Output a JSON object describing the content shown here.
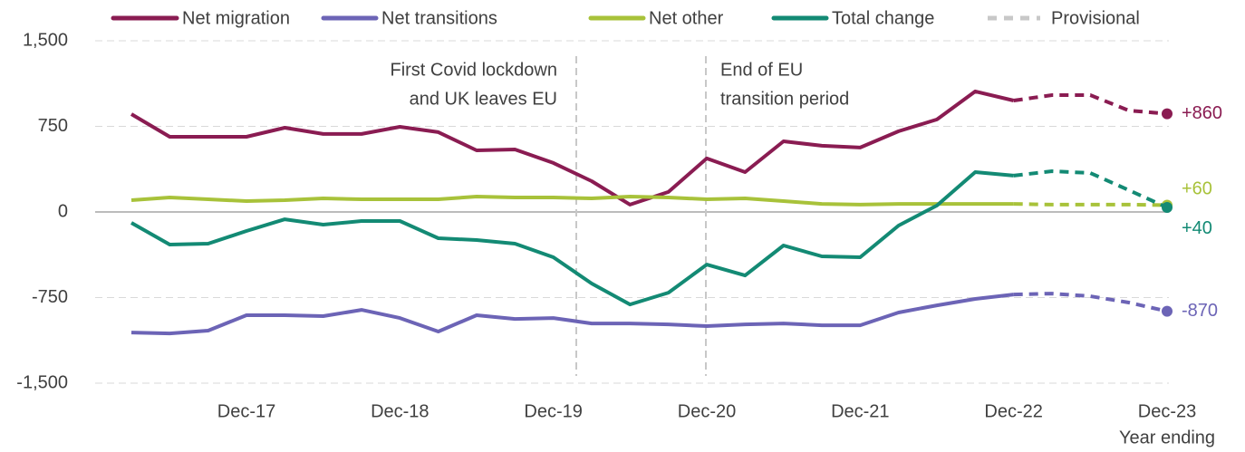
{
  "chart_data": {
    "type": "line",
    "x_label": "Year ending",
    "categories": [
      null,
      null,
      null,
      "Dec-17",
      null,
      null,
      null,
      "Dec-18",
      null,
      null,
      null,
      "Dec-19",
      null,
      null,
      null,
      "Dec-20",
      null,
      null,
      null,
      "Dec-21",
      null,
      null,
      null,
      "Dec-22",
      null,
      null,
      null,
      "Dec-23"
    ],
    "ylim": [
      -1500,
      1500
    ],
    "yticks": [
      {
        "value": -1500,
        "label": "-1,500"
      },
      -750,
      0,
      750,
      {
        "value": 1500,
        "label": "1,500"
      }
    ],
    "grid": true,
    "legend": "top",
    "provisional": {
      "name": "Provisional",
      "color": "#c8c8c8"
    },
    "annotations": [
      {
        "lines": [
          "First Covid lockdown",
          "and UK leaves EU"
        ]
      },
      {
        "lines": [
          "End of EU",
          "transition period"
        ]
      }
    ],
    "series": [
      {
        "name": "Net migration",
        "color": "#8a1c52",
        "values": [
          857,
          659,
          659,
          659,
          738,
          683,
          683,
          746,
          699,
          540,
          548,
          429,
          270,
          64,
          175,
          469,
          349,
          619,
          580,
          564,
          707,
          810,
          1056,
          976,
          null,
          null,
          null,
          null
        ],
        "provisional_values": [
          null,
          null,
          null,
          null,
          null,
          null,
          null,
          null,
          null,
          null,
          null,
          null,
          null,
          null,
          null,
          null,
          null,
          null,
          null,
          null,
          null,
          null,
          null,
          976,
          1024,
          1024,
          889,
          860
        ],
        "end_label": "+860"
      },
      {
        "name": "Net transitions",
        "color": "#6c64b6",
        "values": [
          -1056,
          -1064,
          -1040,
          -905,
          -905,
          -913,
          -858,
          -929,
          -1048,
          -905,
          -937,
          -929,
          -977,
          -977,
          -985,
          -1000,
          -985,
          -977,
          -993,
          -993,
          -881,
          -818,
          -762,
          -723,
          null,
          null,
          null,
          null
        ],
        "provisional_values": [
          null,
          null,
          null,
          null,
          null,
          null,
          null,
          null,
          null,
          null,
          null,
          null,
          null,
          null,
          null,
          null,
          null,
          null,
          null,
          null,
          null,
          null,
          null,
          -723,
          -715,
          -738,
          -794,
          -870
        ],
        "end_label": "-870"
      },
      {
        "name": "Net other",
        "color": "#a8c23a",
        "values": [
          103,
          127,
          111,
          95,
          103,
          119,
          111,
          111,
          111,
          135,
          127,
          127,
          119,
          135,
          127,
          111,
          119,
          95,
          71,
          64,
          71,
          71,
          71,
          71,
          null,
          null,
          null,
          null
        ],
        "provisional_values": [
          null,
          null,
          null,
          null,
          null,
          null,
          null,
          null,
          null,
          null,
          null,
          null,
          null,
          null,
          null,
          null,
          null,
          null,
          null,
          null,
          null,
          null,
          null,
          71,
          64,
          64,
          64,
          60
        ],
        "end_label": "+60"
      },
      {
        "name": "Total change",
        "color": "#138a74",
        "values": [
          -95,
          -286,
          -278,
          -167,
          -64,
          -111,
          -79,
          -79,
          -230,
          -246,
          -278,
          -397,
          -627,
          -810,
          -707,
          -461,
          -556,
          -294,
          -389,
          -397,
          -119,
          56,
          349,
          318,
          null,
          null,
          null,
          null
        ],
        "provisional_values": [
          null,
          null,
          null,
          null,
          null,
          null,
          null,
          null,
          null,
          null,
          null,
          null,
          null,
          null,
          null,
          null,
          null,
          null,
          null,
          null,
          null,
          null,
          null,
          318,
          357,
          341,
          191,
          40
        ],
        "end_label": "+40"
      }
    ]
  }
}
